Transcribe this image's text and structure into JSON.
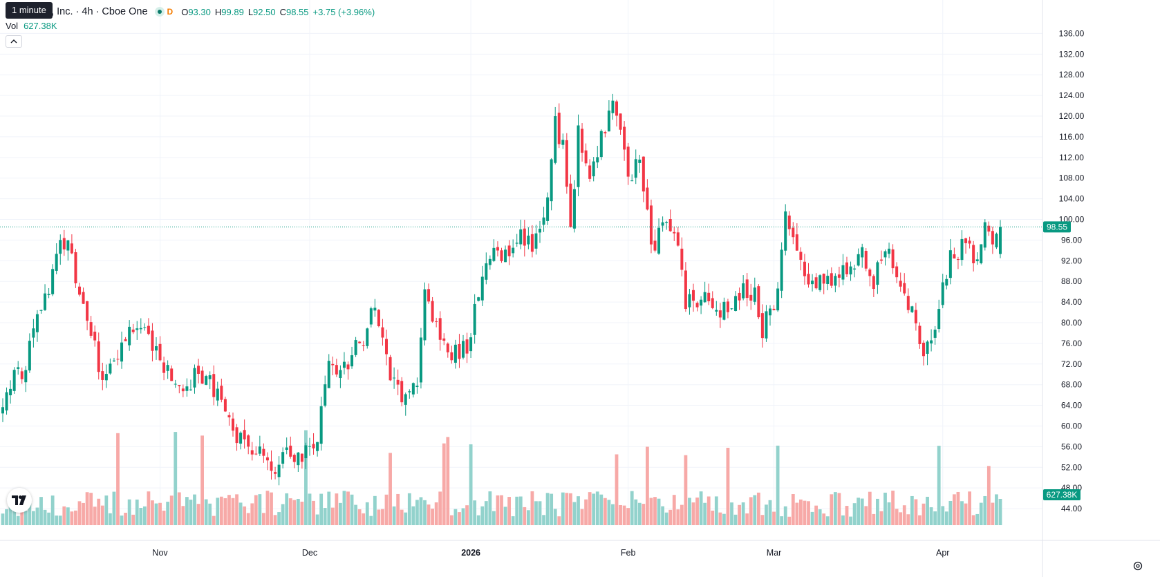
{
  "legend": {
    "tooltip": "1 minute",
    "symbol_text": "aceMobile, Inc. · 4h · Cboe One",
    "exchange_badge": "D",
    "open_label": "O",
    "open": "93.30",
    "high_label": "H",
    "high": "99.89",
    "low_label": "L",
    "low": "92.50",
    "close_label": "C",
    "close": "98.55",
    "change": "+3.75 (+3.96%)",
    "vol_label": "Vol",
    "vol_value": "627.38K"
  },
  "colors": {
    "up": "#089981",
    "down": "#f23645",
    "vol_up": "#92d2cc",
    "vol_down": "#f7a9a7",
    "grid": "#f0f3fa",
    "last_price_line": "#089981"
  },
  "icons": [
    "chevron-up-icon",
    "tradingview-logo-icon",
    "settings-icon"
  ],
  "chart_data": {
    "type": "candlestick",
    "timeframe": "4h",
    "last_price": 98.55,
    "last_volume": "627.38K",
    "y_ticks": [
      "136.00",
      "132.00",
      "128.00",
      "124.00",
      "120.00",
      "116.00",
      "112.00",
      "108.00",
      "104.00",
      "100.00",
      "96.00",
      "92.00",
      "88.00",
      "84.00",
      "80.00",
      "76.00",
      "72.00",
      "68.00",
      "64.00",
      "60.00",
      "56.00",
      "52.00",
      "48.00",
      "44.00"
    ],
    "ylim": [
      40.8,
      138.6
    ],
    "x_ticks": [
      {
        "label": "Nov",
        "bold": false,
        "bar": 41
      },
      {
        "label": "Dec",
        "bold": false,
        "bar": 80
      },
      {
        "label": "2026",
        "bold": true,
        "bar": 122
      },
      {
        "label": "Feb",
        "bold": false,
        "bar": 163
      },
      {
        "label": "Mar",
        "bold": false,
        "bar": 201
      },
      {
        "label": "Apr",
        "bold": false,
        "bar": 245
      }
    ],
    "bar_count": 261,
    "anchors": [
      [
        0,
        66,
        5
      ],
      [
        6,
        72,
        4
      ],
      [
        8,
        80,
        5
      ],
      [
        11,
        86,
        5
      ],
      [
        14,
        91,
        6
      ],
      [
        16,
        96,
        6
      ],
      [
        18,
        92,
        4
      ],
      [
        20,
        86,
        3
      ],
      [
        22,
        80,
        3
      ],
      [
        24,
        76,
        3
      ],
      [
        26,
        68,
        5
      ],
      [
        30,
        74,
        3
      ],
      [
        34,
        79,
        3
      ],
      [
        38,
        77,
        4
      ],
      [
        42,
        71,
        3
      ],
      [
        46,
        68,
        4
      ],
      [
        52,
        70,
        4
      ],
      [
        56,
        66,
        4
      ],
      [
        60,
        59,
        4
      ],
      [
        64,
        57,
        4
      ],
      [
        68,
        54,
        3
      ],
      [
        70,
        51,
        3
      ],
      [
        74,
        55,
        3
      ],
      [
        78,
        54,
        3
      ],
      [
        82,
        58,
        3
      ],
      [
        85,
        72,
        4
      ],
      [
        90,
        71,
        4
      ],
      [
        94,
        78,
        5
      ],
      [
        97,
        84,
        4
      ],
      [
        100,
        73,
        4
      ],
      [
        104,
        64,
        4
      ],
      [
        108,
        69,
        4
      ],
      [
        110,
        86,
        4
      ],
      [
        114,
        78,
        5
      ],
      [
        117,
        73,
        4
      ],
      [
        121,
        76,
        4
      ],
      [
        124,
        85,
        4
      ],
      [
        127,
        94,
        4
      ],
      [
        130,
        91,
        4
      ],
      [
        134,
        97,
        4
      ],
      [
        138,
        95,
        4
      ],
      [
        141,
        99,
        4
      ],
      [
        144,
        118,
        4
      ],
      [
        146,
        114,
        5
      ],
      [
        148,
        100,
        5
      ],
      [
        150,
        116,
        5
      ],
      [
        153,
        108,
        5
      ],
      [
        156,
        116,
        5
      ],
      [
        159,
        122,
        5
      ],
      [
        161,
        118,
        6
      ],
      [
        163,
        108,
        5
      ],
      [
        166,
        112,
        5
      ],
      [
        168,
        100,
        5
      ],
      [
        170,
        94,
        4
      ],
      [
        172,
        100,
        4
      ],
      [
        174,
        99,
        4
      ],
      [
        176,
        96,
        3
      ],
      [
        178,
        84,
        4
      ],
      [
        184,
        85,
        4
      ],
      [
        188,
        82,
        5
      ],
      [
        192,
        86,
        4
      ],
      [
        196,
        85,
        4
      ],
      [
        198,
        79,
        4
      ],
      [
        202,
        86,
        4
      ],
      [
        204,
        102,
        5
      ],
      [
        207,
        92,
        5
      ],
      [
        211,
        88,
        4
      ],
      [
        216,
        88,
        4
      ],
      [
        220,
        90,
        4
      ],
      [
        224,
        93,
        4
      ],
      [
        227,
        88,
        4
      ],
      [
        230,
        95,
        4
      ],
      [
        234,
        87,
        4
      ],
      [
        238,
        80,
        4
      ],
      [
        240,
        74,
        3
      ],
      [
        242,
        76,
        4
      ],
      [
        244,
        82,
        4
      ],
      [
        247,
        93,
        5
      ],
      [
        250,
        95,
        4
      ],
      [
        254,
        93,
        4
      ],
      [
        256,
        97,
        5
      ],
      [
        258,
        94,
        4
      ],
      [
        260,
        98.5,
        3
      ]
    ],
    "volume_axis_hidden": true
  }
}
